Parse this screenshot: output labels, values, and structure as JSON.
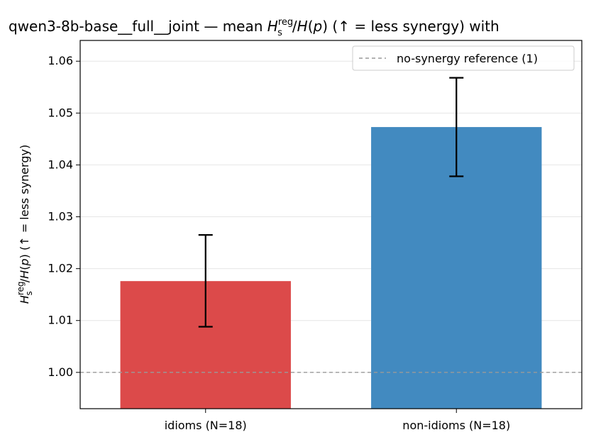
{
  "chart_data": {
    "type": "bar",
    "title_prefix": "qwen3-8b-base__full__joint — mean ",
    "title_suffix": "  (↑ = less synergy) with",
    "ylabel_suffix": "  (↑ = less synergy)",
    "categories": [
      "idioms (N=18)",
      "non-idioms (N=18)"
    ],
    "values": [
      1.0176,
      1.0473
    ],
    "error_low": [
      1.0088,
      1.0378
    ],
    "error_high": [
      1.0265,
      1.0568
    ],
    "colors": [
      "#dc4a4a",
      "#428ac0"
    ],
    "ylim": [
      0.993,
      1.064
    ],
    "yticks": [
      1.0,
      1.01,
      1.02,
      1.03,
      1.04,
      1.05,
      1.06
    ],
    "ytick_labels": [
      "1.00",
      "1.01",
      "1.02",
      "1.03",
      "1.04",
      "1.05",
      "1.06"
    ],
    "reference_line": {
      "value": 1.0,
      "label": "no-synergy reference (1)",
      "color": "#999999"
    },
    "legend_position": "top-right",
    "grid": "y"
  }
}
